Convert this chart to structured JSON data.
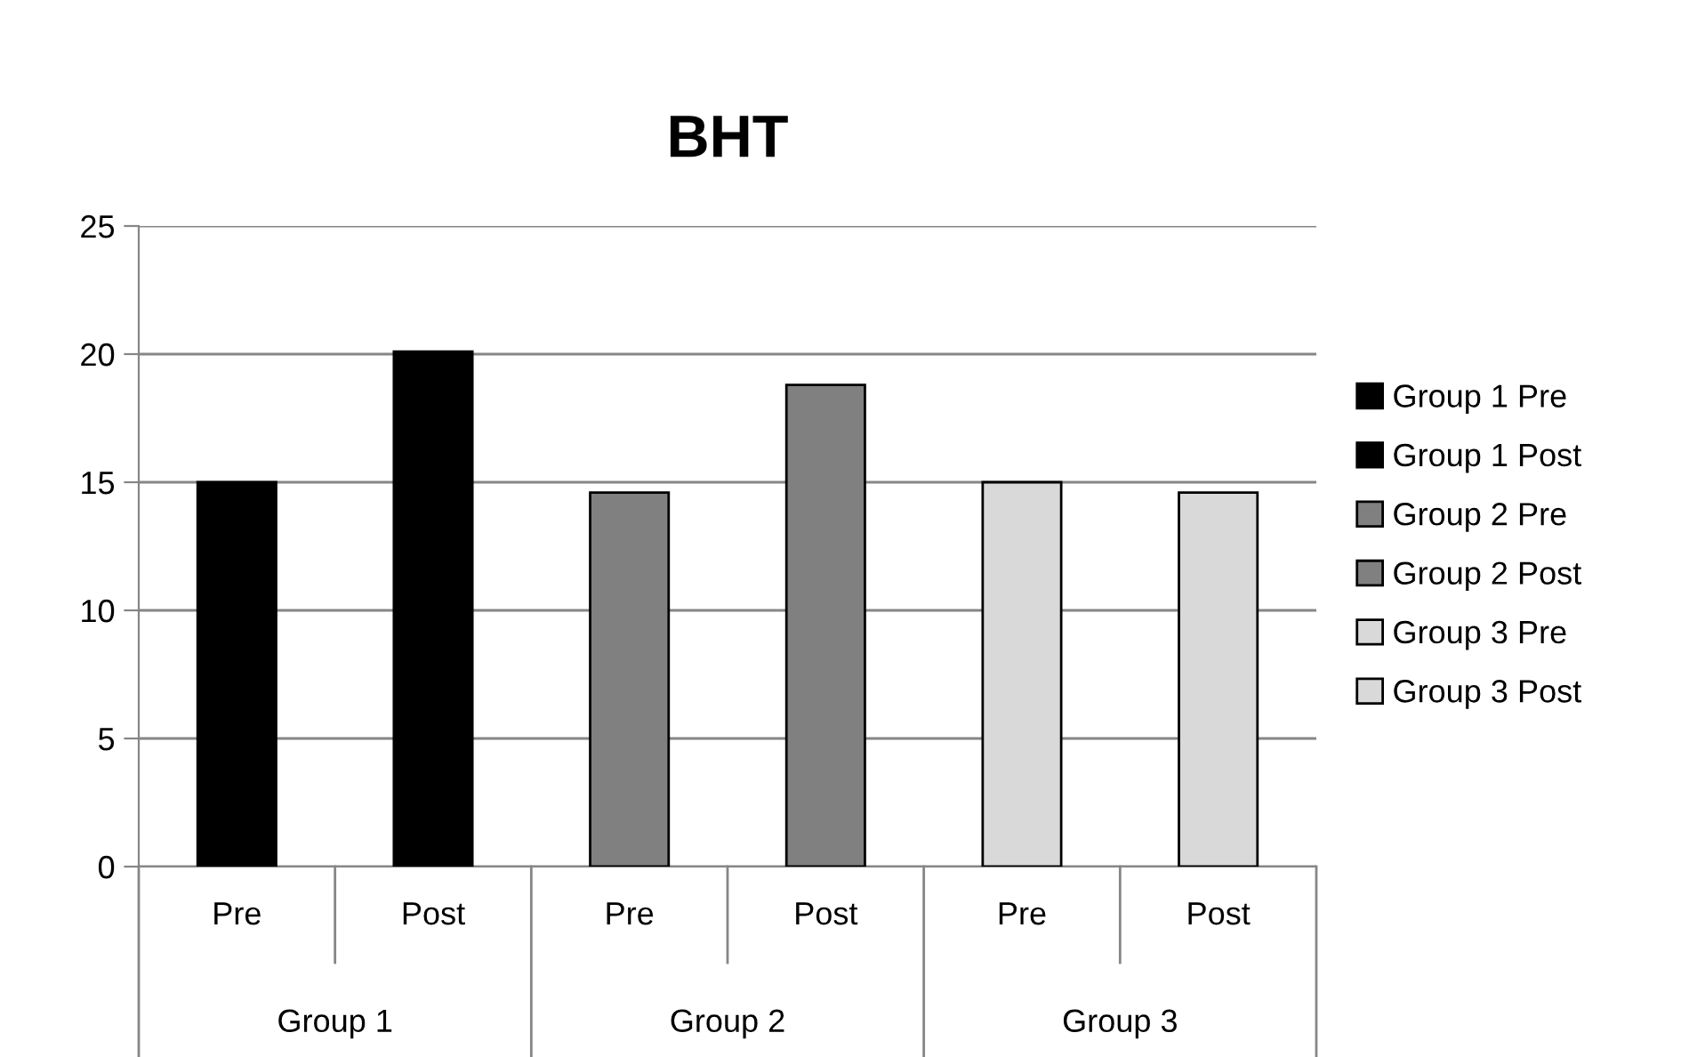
{
  "chart_data": {
    "type": "bar",
    "title": "BHT",
    "categories": [
      "Pre",
      "Post",
      "Pre",
      "Post",
      "Pre",
      "Post"
    ],
    "series": [
      {
        "name": "Group 1 Pre",
        "color": "#000000",
        "values": [
          15.0,
          null,
          null,
          null,
          null,
          null
        ]
      },
      {
        "name": "Group 1 Post",
        "color": "#000000",
        "values": [
          null,
          20.1,
          null,
          null,
          null,
          null
        ]
      },
      {
        "name": "Group 2 Pre",
        "color": "#808080",
        "values": [
          null,
          null,
          14.6,
          null,
          null,
          null
        ]
      },
      {
        "name": "Group 2 Post",
        "color": "#808080",
        "values": [
          null,
          null,
          null,
          18.8,
          null,
          null
        ]
      },
      {
        "name": "Group 3 Pre",
        "color": "#d9d9d9",
        "values": [
          null,
          null,
          null,
          null,
          15.0,
          null
        ]
      },
      {
        "name": "Group 3 Post",
        "color": "#d9d9d9",
        "values": [
          null,
          null,
          null,
          null,
          null,
          14.6
        ]
      }
    ],
    "annotations": [
      "Group 1",
      "Group 2",
      "Group 3"
    ],
    "ylim": [
      0,
      25
    ],
    "yticks": [
      0,
      5,
      10,
      15,
      20,
      25
    ],
    "grid": "y",
    "legend": "right"
  }
}
